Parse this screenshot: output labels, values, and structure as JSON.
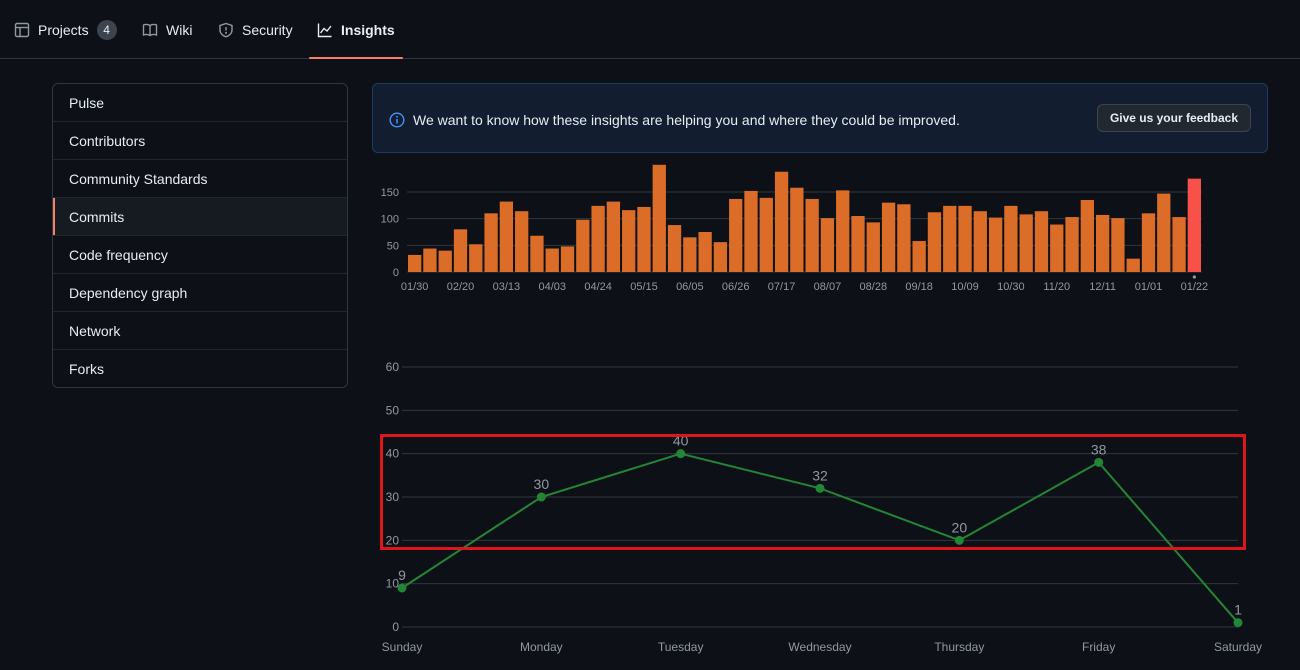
{
  "nav": {
    "tabs": [
      {
        "label": "Projects",
        "icon": "table-icon",
        "count": "4"
      },
      {
        "label": "Wiki",
        "icon": "book-icon"
      },
      {
        "label": "Security",
        "icon": "shield-icon"
      },
      {
        "label": "Insights",
        "icon": "graph-icon",
        "active": true
      }
    ]
  },
  "sidebar": {
    "items": [
      {
        "label": "Pulse"
      },
      {
        "label": "Contributors"
      },
      {
        "label": "Community Standards"
      },
      {
        "label": "Commits",
        "selected": true
      },
      {
        "label": "Code frequency"
      },
      {
        "label": "Dependency graph"
      },
      {
        "label": "Network"
      },
      {
        "label": "Forks"
      }
    ]
  },
  "banner": {
    "message": "We want to know how these insights are helping you and where they could be improved.",
    "button_label": "Give us your feedback"
  },
  "colors": {
    "bar": "#db6d28",
    "bar_highlight": "#f85149",
    "line": "#238636",
    "accent": "#f78166"
  },
  "chart_data": [
    {
      "type": "bar",
      "x_tick_labels": [
        "01/30",
        "02/20",
        "03/13",
        "04/03",
        "04/24",
        "05/15",
        "06/05",
        "06/26",
        "07/17",
        "08/07",
        "08/28",
        "09/18",
        "10/09",
        "10/30",
        "11/20",
        "12/11",
        "01/01",
        "01/22"
      ],
      "values": [
        32,
        44,
        40,
        80,
        52,
        110,
        132,
        114,
        68,
        44,
        48,
        98,
        124,
        132,
        116,
        122,
        201,
        88,
        65,
        75,
        56,
        137,
        152,
        139,
        188,
        158,
        137,
        101,
        153,
        105,
        93,
        130,
        127,
        58,
        112,
        124,
        124,
        114,
        102,
        124,
        108,
        114,
        89,
        103,
        135,
        107,
        101,
        25,
        110,
        147,
        103,
        175
      ],
      "highlight_last": true,
      "yticks": [
        0,
        50,
        100,
        150
      ],
      "ylim": [
        0,
        210
      ],
      "grid": true
    },
    {
      "type": "line",
      "categories": [
        "Sunday",
        "Monday",
        "Tuesday",
        "Wednesday",
        "Thursday",
        "Friday",
        "Saturday"
      ],
      "values": [
        9,
        30,
        40,
        32,
        20,
        38,
        1
      ],
      "data_labels": [
        "9",
        "30",
        "40",
        "32",
        "20",
        "38",
        "1"
      ],
      "yticks": [
        0,
        10,
        20,
        30,
        40,
        50,
        60
      ],
      "ylim": [
        0,
        60
      ],
      "grid": true
    }
  ]
}
